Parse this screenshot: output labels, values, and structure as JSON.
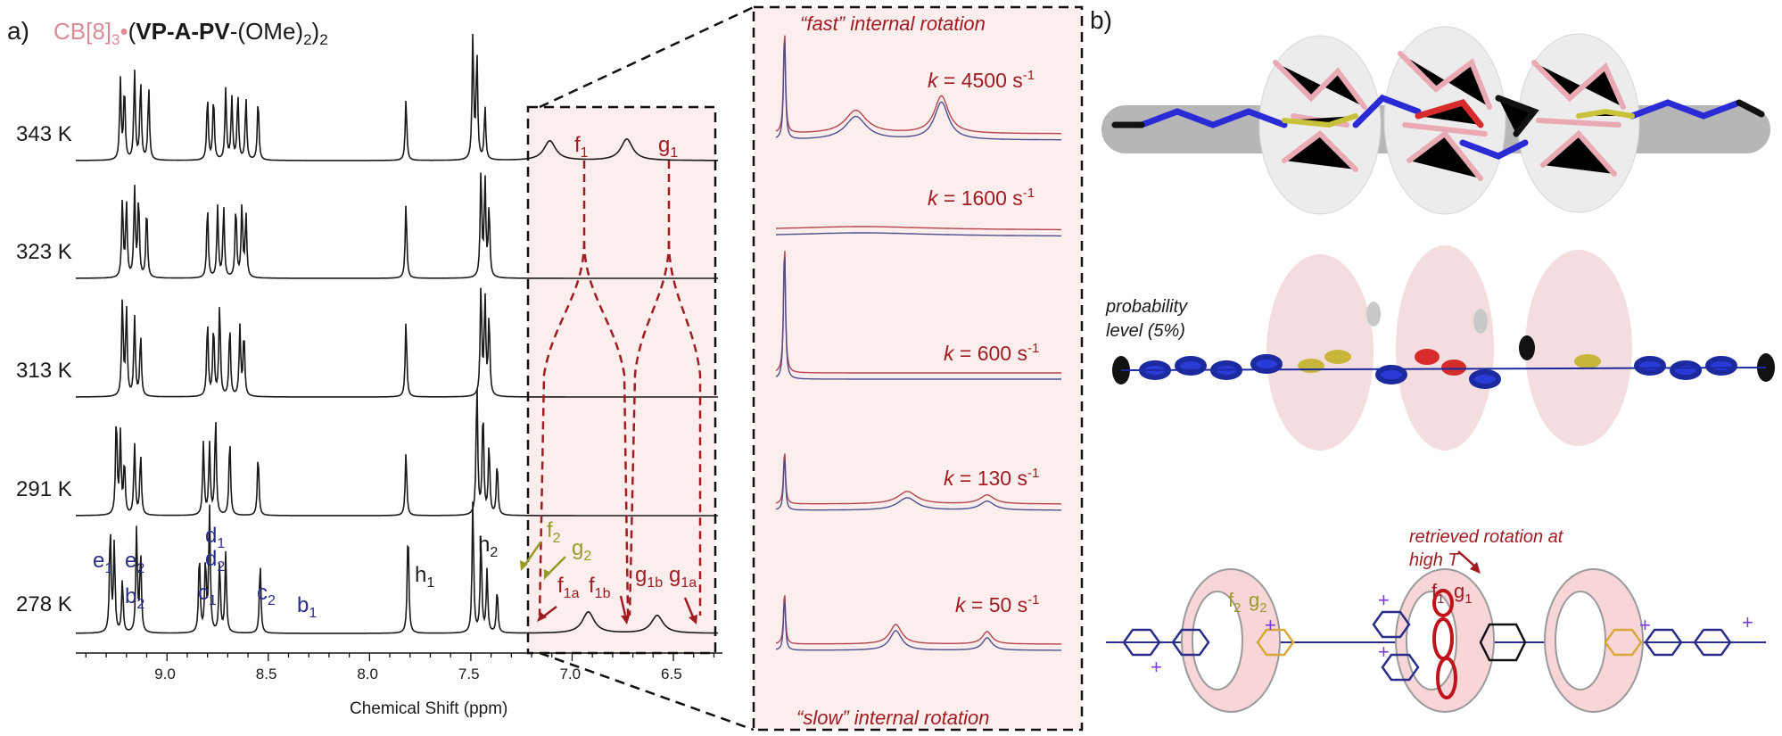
{
  "colors": {
    "spectrum": "#1a1a1a",
    "assignment_blue": "#2a2e8a",
    "assignment_olive": "#9a9a2a",
    "highlight_red": "#a11c22",
    "cb8_pink": "#d98c94",
    "panel_fill": "#fdeeee",
    "sim_line_red": "#b4444e",
    "sim_line_blue": "#4b4f8f"
  },
  "panel_a": {
    "label": "a)",
    "title_pink": "CB[8]",
    "title_sub": "3",
    "title_dot": "•",
    "title_paren_open": "(",
    "title_bold": "VP-A-PV",
    "title_rest": "-(OMe)",
    "title_rest_sub": "2",
    "title_close": ")",
    "title_close_sub": "2",
    "xlabel": "Chemical Shift (ppm)",
    "xticks": [
      "9.0",
      "8.5",
      "8.0",
      "7.5",
      "7.0",
      "6.5"
    ],
    "temperatures": [
      "343 K",
      "323 K",
      "313 K",
      "291 K",
      "278 K"
    ],
    "peak_labels": [
      {
        "base": "e",
        "sub": "1",
        "color": "blue"
      },
      {
        "base": "e",
        "sub": "2",
        "color": "blue"
      },
      {
        "base": "b",
        "sub": "2",
        "color": "blue"
      },
      {
        "base": "d",
        "sub": "1",
        "color": "blue"
      },
      {
        "base": "d",
        "sub": "2",
        "color": "blue"
      },
      {
        "base": "c",
        "sub": "1",
        "color": "blue"
      },
      {
        "base": "c",
        "sub": "2",
        "color": "blue"
      },
      {
        "base": "b",
        "sub": "1",
        "color": "blue"
      },
      {
        "base": "h",
        "sub": "1",
        "color": "black"
      },
      {
        "base": "h",
        "sub": "2",
        "color": "black"
      },
      {
        "base": "f",
        "sub": "2",
        "color": "olive"
      },
      {
        "base": "g",
        "sub": "2",
        "color": "olive"
      },
      {
        "base": "f",
        "sub": "1a",
        "color": "red"
      },
      {
        "base": "f",
        "sub": "1b",
        "color": "red"
      },
      {
        "base": "g",
        "sub": "1b",
        "color": "red"
      },
      {
        "base": "g",
        "sub": "1a",
        "color": "red"
      },
      {
        "base": "f",
        "sub": "1",
        "color": "red"
      },
      {
        "base": "g",
        "sub": "1",
        "color": "red"
      }
    ]
  },
  "sim_panel": {
    "top_text": "“fast” internal rotation",
    "bottom_text": "“slow” internal rotation",
    "k_prefix": "k",
    "k_unit": " s",
    "k_exp": "-1",
    "rates": [
      "= 4500",
      "= 1600",
      "= 600",
      "= 130",
      "= 50"
    ]
  },
  "panel_b": {
    "label": "b)",
    "probability_line1": "probability",
    "probability_line2": "level (5%)",
    "retrieved_line1": "retrieved rotation at",
    "retrieved_line2": "high T",
    "scheme_labels": [
      {
        "base": "f",
        "sub": "2",
        "color": "olive"
      },
      {
        "base": "g",
        "sub": "2",
        "color": "olive"
      },
      {
        "base": "f",
        "sub": "1",
        "color": "red"
      },
      {
        "base": "g",
        "sub": "1",
        "color": "red"
      }
    ]
  }
}
